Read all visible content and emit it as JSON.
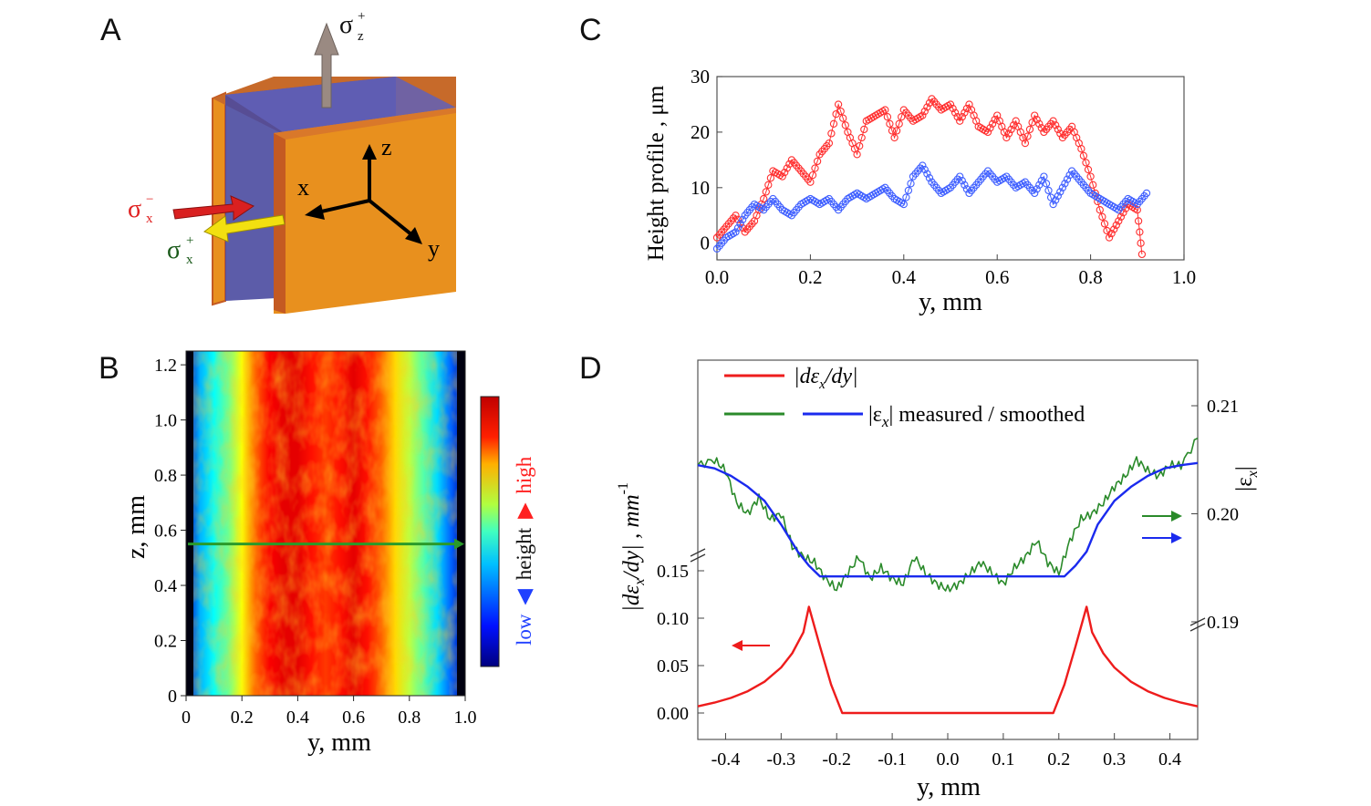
{
  "figure": {
    "panels": {
      "A": {
        "letter": "A",
        "labels": {
          "sigma_z_plus": "σ",
          "sigma_z_plus_sup": "+",
          "sigma_z_plus_sub": "z",
          "sigma_x_minus": "σ",
          "sigma_x_minus_sup": "−",
          "sigma_x_minus_sub": "x",
          "sigma_x_plus": "σ",
          "sigma_x_plus_sup": "+",
          "sigma_x_plus_sub": "x",
          "axis_x": "x",
          "axis_y": "y",
          "axis_z": "z"
        },
        "colors": {
          "front_face": "#e8901e",
          "edge": "#c45a22",
          "glass": "#4a4aa0",
          "arrow_z": "#9a8a82",
          "arrow_x_minus": "#d92020",
          "arrow_x_plus": "#f2e010",
          "sigma_minus_text": "#e02020",
          "sigma_plus_text": "#1a5a1a"
        }
      },
      "B": {
        "letter": "B",
        "xlabel": "y, mm",
        "ylabel": "z, mm",
        "xticks": [
          "0",
          "0.2",
          "0.4",
          "0.6",
          "0.8",
          "1.0"
        ],
        "yticks": [
          "0",
          "0.2",
          "0.4",
          "0.6",
          "0.8",
          "1.0",
          "1.2"
        ],
        "colorbar": {
          "low": "low",
          "height": "height",
          "high": "high",
          "low_color": "#2040ff",
          "high_color": "#ff2020"
        },
        "scan_line_z": 0.55,
        "scan_line_color": "#2a9a2a"
      },
      "C": {
        "letter": "C",
        "ylabel": "Height profile , μm",
        "xlabel": "y, mm"
      },
      "D": {
        "letter": "D",
        "legend": {
          "red_label": "|dε",
          "red_label_sub": "x",
          "red_label_tail": "/dy|",
          "green_blue_label": "|ε",
          "green_blue_label_sub": "x",
          "green_blue_label_tail": "| measured / smoothed"
        },
        "ylabel_left": "|dε",
        "ylabel_left_sub": "x",
        "ylabel_left_tail": "/dy| , mm",
        "ylabel_left_sup": "-1",
        "ylabel_right": "|ε",
        "ylabel_right_sub": "x",
        "ylabel_right_tail": "|",
        "xlabel": "y, mm"
      }
    }
  },
  "chart_data": [
    {
      "panel": "B",
      "type": "heatmap",
      "xlabel": "y, mm",
      "ylabel": "z, mm",
      "xlim": [
        0,
        1.0
      ],
      "ylim": [
        0,
        1.25
      ],
      "colormap": "jet",
      "y_columns": [
        0.0,
        0.05,
        0.1,
        0.15,
        0.2,
        0.25,
        0.3,
        0.35,
        0.4,
        0.45,
        0.5,
        0.55,
        0.6,
        0.65,
        0.7,
        0.75,
        0.8,
        0.85,
        0.9,
        0.95,
        1.0
      ],
      "relative_height": [
        0.05,
        0.3,
        0.38,
        0.48,
        0.62,
        0.78,
        0.88,
        0.9,
        0.9,
        0.86,
        0.82,
        0.86,
        0.9,
        0.86,
        0.78,
        0.66,
        0.56,
        0.46,
        0.34,
        0.22,
        0.02
      ]
    },
    {
      "panel": "C",
      "type": "scatter",
      "xlabel": "y, mm",
      "ylabel": "Height profile , μm",
      "xlim": [
        0.0,
        1.0
      ],
      "ylim": [
        -3,
        30
      ],
      "xticks": [
        0.0,
        0.2,
        0.4,
        0.6,
        0.8,
        1.0
      ],
      "yticks": [
        0,
        10,
        20,
        30
      ],
      "series": [
        {
          "color": "#ff3030",
          "x": [
            0.0,
            0.02,
            0.04,
            0.06,
            0.08,
            0.1,
            0.12,
            0.14,
            0.16,
            0.18,
            0.2,
            0.22,
            0.24,
            0.26,
            0.28,
            0.3,
            0.32,
            0.34,
            0.36,
            0.38,
            0.4,
            0.42,
            0.44,
            0.46,
            0.48,
            0.5,
            0.52,
            0.54,
            0.56,
            0.58,
            0.6,
            0.62,
            0.64,
            0.66,
            0.68,
            0.7,
            0.72,
            0.74,
            0.76,
            0.78,
            0.8,
            0.82,
            0.84,
            0.86,
            0.88,
            0.9,
            0.91
          ],
          "y": [
            1,
            3,
            5,
            2,
            4,
            8,
            13,
            12,
            15,
            13,
            11,
            16,
            18,
            25,
            20,
            16,
            22,
            23,
            24,
            19,
            24,
            22,
            23,
            26,
            24,
            25,
            22,
            25,
            21,
            20,
            23,
            19,
            22,
            18,
            23,
            20,
            22,
            19,
            21,
            17,
            12,
            6,
            1,
            4,
            7,
            6,
            -2
          ]
        },
        {
          "color": "#4060ff",
          "x": [
            0.0,
            0.02,
            0.04,
            0.06,
            0.08,
            0.1,
            0.12,
            0.14,
            0.16,
            0.18,
            0.2,
            0.22,
            0.24,
            0.26,
            0.28,
            0.3,
            0.32,
            0.34,
            0.36,
            0.38,
            0.4,
            0.42,
            0.44,
            0.46,
            0.48,
            0.5,
            0.52,
            0.54,
            0.56,
            0.58,
            0.6,
            0.62,
            0.64,
            0.66,
            0.68,
            0.7,
            0.72,
            0.74,
            0.76,
            0.78,
            0.8,
            0.82,
            0.84,
            0.86,
            0.88,
            0.9,
            0.92
          ],
          "y": [
            -1,
            1,
            2,
            5,
            7,
            6,
            8,
            6,
            5,
            7,
            8,
            7,
            8,
            6,
            8,
            9,
            8,
            9,
            10,
            8,
            7,
            12,
            14,
            11,
            9,
            10,
            12,
            9,
            11,
            13,
            11,
            12,
            10,
            11,
            9,
            12,
            7,
            10,
            13,
            11,
            9,
            8,
            7,
            6,
            8,
            7,
            9
          ]
        }
      ]
    },
    {
      "panel": "D",
      "type": "line",
      "xlabel": "y, mm",
      "xlim": [
        -0.45,
        0.45
      ],
      "xticks": [
        -0.4,
        -0.3,
        -0.2,
        -0.1,
        0.0,
        0.1,
        0.2,
        0.3,
        0.4
      ],
      "left_yticks": [
        0.0,
        0.05,
        0.1,
        0.15
      ],
      "right_yticks": [
        0.19,
        0.2,
        0.21
      ],
      "series": [
        {
          "name": "|dεx/dy|",
          "axis": "left",
          "color": "#ee1c1c",
          "x": [
            -0.45,
            -0.42,
            -0.39,
            -0.36,
            -0.33,
            -0.3,
            -0.28,
            -0.26,
            -0.25,
            -0.23,
            -0.21,
            -0.19,
            -0.15,
            0.0,
            0.15,
            0.19,
            0.21,
            0.23,
            0.25,
            0.26,
            0.28,
            0.3,
            0.33,
            0.36,
            0.39,
            0.42,
            0.45
          ],
          "y": [
            0.007,
            0.011,
            0.016,
            0.023,
            0.033,
            0.048,
            0.063,
            0.085,
            0.112,
            0.07,
            0.03,
            0.0,
            0.0,
            0.0,
            0.0,
            0.0,
            0.03,
            0.07,
            0.112,
            0.085,
            0.063,
            0.048,
            0.033,
            0.023,
            0.016,
            0.011,
            0.007
          ]
        },
        {
          "name": "|εx| measured",
          "axis": "right",
          "color": "#2a8a2a",
          "x": [
            -0.45,
            -0.42,
            -0.4,
            -0.38,
            -0.36,
            -0.34,
            -0.32,
            -0.3,
            -0.28,
            -0.26,
            -0.24,
            -0.22,
            -0.2,
            -0.18,
            -0.16,
            -0.14,
            -0.12,
            -0.1,
            -0.08,
            -0.06,
            -0.04,
            -0.02,
            0.0,
            0.02,
            0.04,
            0.06,
            0.08,
            0.1,
            0.12,
            0.14,
            0.16,
            0.18,
            0.2,
            0.22,
            0.24,
            0.26,
            0.28,
            0.3,
            0.32,
            0.34,
            0.36,
            0.38,
            0.4,
            0.42,
            0.45
          ],
          "y": [
            0.2045,
            0.205,
            0.204,
            0.201,
            0.2,
            0.2015,
            0.1995,
            0.2,
            0.197,
            0.196,
            0.1955,
            0.194,
            0.193,
            0.1945,
            0.196,
            0.194,
            0.195,
            0.194,
            0.1935,
            0.196,
            0.1945,
            0.1935,
            0.193,
            0.1935,
            0.1945,
            0.1955,
            0.1945,
            0.1935,
            0.195,
            0.196,
            0.1975,
            0.1955,
            0.1945,
            0.1975,
            0.1995,
            0.2,
            0.201,
            0.2025,
            0.2035,
            0.205,
            0.204,
            0.2035,
            0.2045,
            0.2045,
            0.207
          ]
        },
        {
          "name": "|εx| smoothed",
          "axis": "right",
          "color": "#1a2aee",
          "x": [
            -0.45,
            -0.42,
            -0.39,
            -0.36,
            -0.33,
            -0.3,
            -0.27,
            -0.25,
            -0.23,
            -0.21,
            -0.19,
            -0.15,
            0.0,
            0.15,
            0.19,
            0.21,
            0.23,
            0.25,
            0.27,
            0.3,
            0.33,
            0.36,
            0.39,
            0.42,
            0.45
          ],
          "y": [
            0.2045,
            0.2042,
            0.2035,
            0.2025,
            0.2012,
            0.199,
            0.1965,
            0.1952,
            0.1942,
            0.1942,
            0.1942,
            0.1942,
            0.1942,
            0.1942,
            0.1942,
            0.1942,
            0.1952,
            0.1965,
            0.199,
            0.2012,
            0.2025,
            0.2035,
            0.2042,
            0.2045,
            0.2047
          ]
        }
      ]
    }
  ]
}
